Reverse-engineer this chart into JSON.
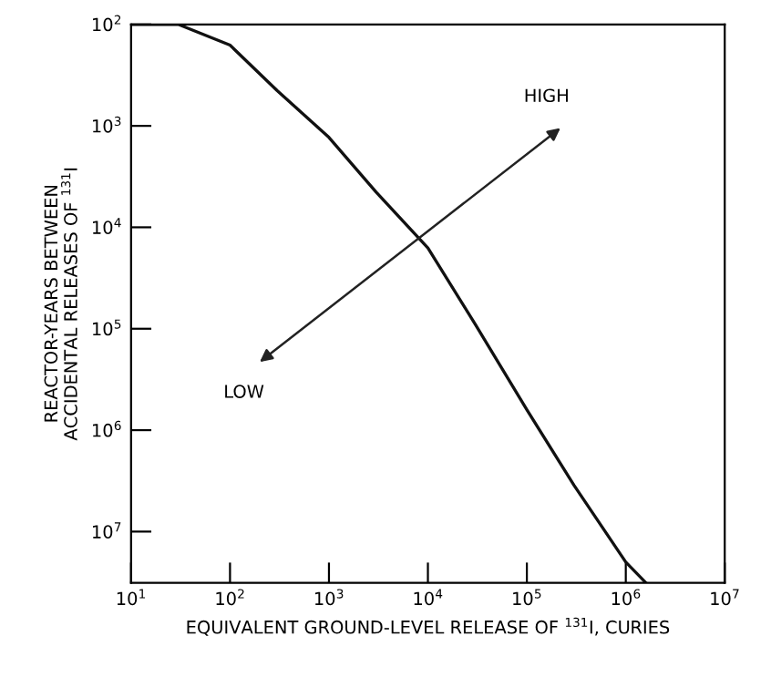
{
  "chart_data": {
    "type": "line",
    "log": "xy",
    "xlabel": "EQUIVALENT GROUND-LEVEL RELEASE OF $^{131}$I, CURIES",
    "ylabel": "REACTOR-YEARS BETWEEN\nACCIDENTAL RELEASES OF $^{131}$I",
    "x": [
      10,
      30,
      100,
      300,
      1000,
      3000,
      10000,
      30000,
      100000,
      300000,
      1000000,
      1600000
    ],
    "series": [
      {
        "color": "#111111",
        "values": [
          100,
          100,
          160,
          450,
          1300,
          4500,
          16000,
          90000,
          630000,
          3500000,
          20000000,
          32000000
        ]
      }
    ],
    "xlim": [
      10,
      10000000
    ],
    "ylim": [
      32000000,
      100
    ],
    "xticks": [
      {
        "value": 10,
        "label": "10$^{1}$"
      },
      {
        "value": 100,
        "label": "10$^{2}$"
      },
      {
        "value": 1000,
        "label": "10$^{3}$"
      },
      {
        "value": 10000,
        "label": "10$^{4}$"
      },
      {
        "value": 100000,
        "label": "10$^{5}$"
      },
      {
        "value": 1000000,
        "label": "10$^{6}$"
      },
      {
        "value": 10000000,
        "label": "10$^{7}$"
      }
    ],
    "yticks": [
      {
        "value": 100,
        "label": "10$^{2}$"
      },
      {
        "value": 1000,
        "label": "10$^{3}$"
      },
      {
        "value": 10000,
        "label": "10$^{4}$"
      },
      {
        "value": 100000,
        "label": "10$^{5}$"
      },
      {
        "value": 1000000,
        "label": "10$^{6}$"
      },
      {
        "value": 10000000,
        "label": "10$^{7}$"
      }
    ],
    "annotations": [
      "HIGH",
      "LOW"
    ],
    "grid": false,
    "legend": false,
    "marker": "none",
    "line_style": "solid"
  }
}
